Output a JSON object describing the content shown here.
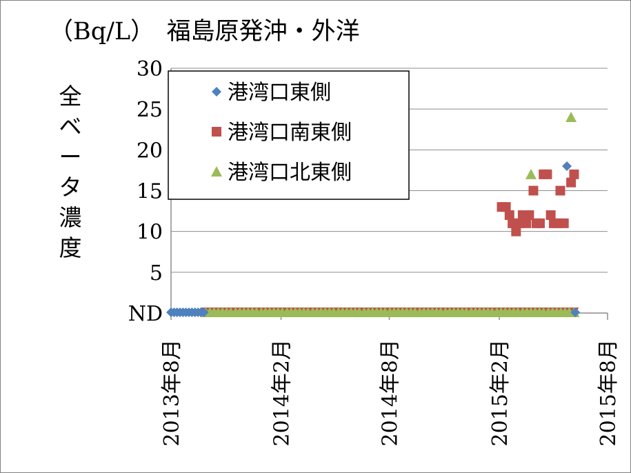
{
  "chart_data": {
    "type": "scatter",
    "title": "（Bq/L）　福島原発沖・外洋",
    "ylabel": "全ベータ濃度",
    "ylim": [
      0,
      30
    ],
    "y_ticks": [
      "ND",
      "5",
      "10",
      "15",
      "20",
      "25",
      "30"
    ],
    "x_ticks": [
      "2013年8月",
      "2014年2月",
      "2014年8月",
      "2015年2月",
      "2015年8月"
    ],
    "x_range": [
      "2013-08-01",
      "2015-08-01"
    ],
    "grid": true,
    "legend_position": "top-left",
    "series": [
      {
        "name": "港湾口東側",
        "marker": "diamond",
        "color": "#4f81bd",
        "points": [
          [
            "2013-08-01",
            0
          ],
          [
            "2013-08-06",
            0
          ],
          [
            "2013-08-11",
            0
          ],
          [
            "2013-08-16",
            0
          ],
          [
            "2013-08-21",
            0
          ],
          [
            "2013-08-26",
            0
          ],
          [
            "2013-08-31",
            0
          ],
          [
            "2013-09-05",
            0
          ],
          [
            "2013-09-10",
            0
          ],
          [
            "2013-09-15",
            0
          ],
          [
            "2013-09-20",
            0
          ],
          [
            "2013-09-25",
            0
          ],
          [
            "2015-04-20",
            17
          ],
          [
            "2015-05-25",
            18
          ],
          [
            "2015-06-08",
            0
          ]
        ]
      },
      {
        "name": "港湾口南東側",
        "marker": "square",
        "color": "#c0504d",
        "points": [
          [
            "2015-02-05",
            13
          ],
          [
            "2015-02-12",
            13
          ],
          [
            "2015-02-18",
            12
          ],
          [
            "2015-02-23",
            11
          ],
          [
            "2015-03-01",
            10
          ],
          [
            "2015-03-06",
            11
          ],
          [
            "2015-03-12",
            12
          ],
          [
            "2015-03-18",
            11
          ],
          [
            "2015-03-23",
            12
          ],
          [
            "2015-03-30",
            15
          ],
          [
            "2015-04-04",
            11
          ],
          [
            "2015-04-10",
            11
          ],
          [
            "2015-04-16",
            17
          ],
          [
            "2015-04-22",
            17
          ],
          [
            "2015-04-28",
            12
          ],
          [
            "2015-05-03",
            11
          ],
          [
            "2015-05-09",
            11
          ],
          [
            "2015-05-14",
            15
          ],
          [
            "2015-05-20",
            11
          ],
          [
            "2015-06-01",
            16
          ],
          [
            "2015-06-06",
            17
          ]
        ],
        "nd_markers": {
          "from": "2013-09-28",
          "to": "2015-06-06",
          "count": 87,
          "marker": "triangle-down"
        }
      },
      {
        "name": "港湾口北東側",
        "marker": "triangle",
        "color": "#9bbb59",
        "points": [
          [
            "2015-03-26",
            17
          ],
          [
            "2015-06-01",
            24
          ]
        ],
        "nd_markers": {
          "from": "2013-09-28",
          "to": "2015-06-06",
          "count": 87,
          "marker": "triangle"
        }
      }
    ]
  }
}
